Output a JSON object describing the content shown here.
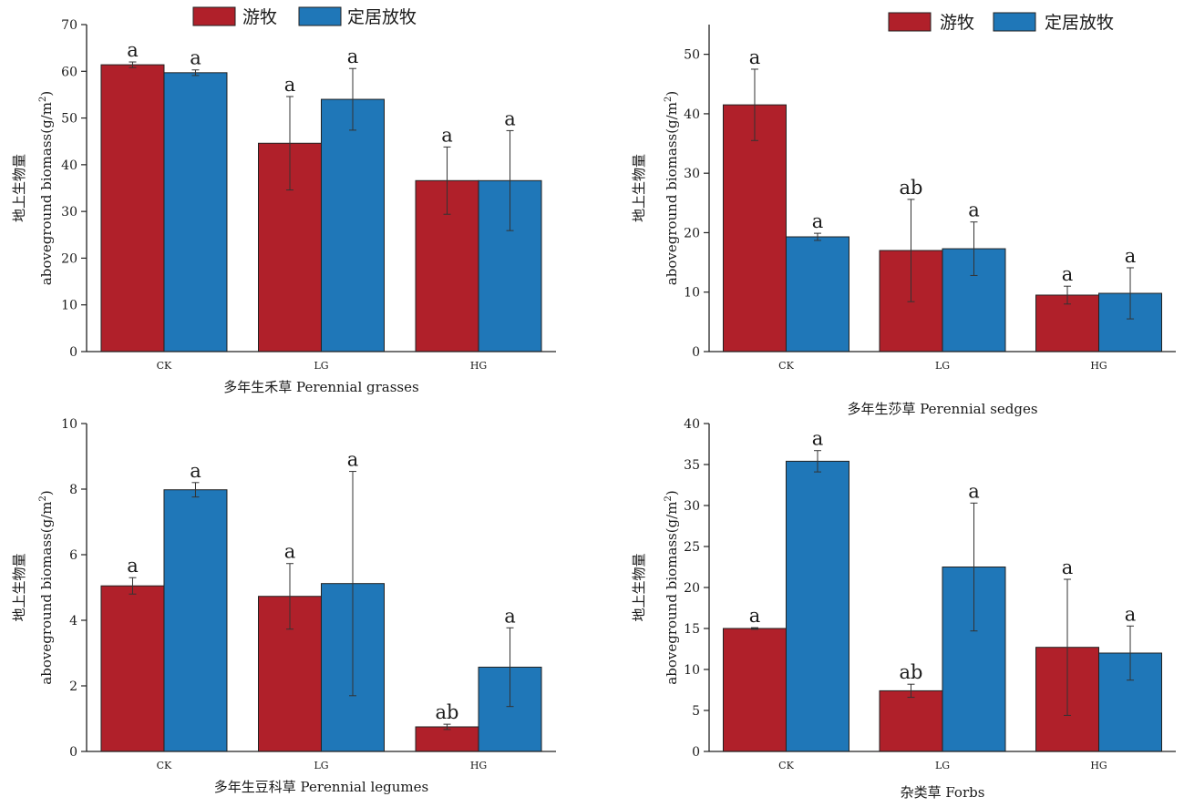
{
  "legend": {
    "series_a": "游牧",
    "series_b": "定居放牧"
  },
  "colors": {
    "series_a": "#b0202a",
    "series_b": "#1f77b8",
    "axis": "#222222",
    "error": "#333333"
  },
  "chart_data": [
    {
      "type": "bar",
      "categories": [
        "CK",
        "LG",
        "HG"
      ],
      "series": [
        {
          "name": "游牧",
          "values": [
            61.4,
            44.6,
            36.6
          ],
          "errors": [
            0.6,
            10.0,
            7.2
          ],
          "letters": [
            "a",
            "a",
            "a"
          ]
        },
        {
          "name": "定居放牧",
          "values": [
            59.7,
            54.0,
            36.6
          ],
          "errors": [
            0.6,
            6.6,
            10.7
          ],
          "letters": [
            "a",
            "a",
            "a"
          ]
        }
      ],
      "ylim": [
        0,
        70
      ],
      "ytick_step": 10,
      "yticks_decimals": 0,
      "ylabel_cn": "地上生物量",
      "ylabel_en": "aboveground biomass",
      "ylabel_unit": "(g/m",
      "ylabel_sup": "2",
      "ylabel_close": ")",
      "xlabel": "多年生禾草 Perennial grasses",
      "legend_position": "top"
    },
    {
      "type": "bar",
      "categories": [
        "CK",
        "LG",
        "HG"
      ],
      "series": [
        {
          "name": "游牧",
          "values": [
            41.5,
            17.0,
            9.5
          ],
          "errors": [
            6.0,
            8.6,
            1.5
          ],
          "letters": [
            "a",
            "ab",
            "a"
          ]
        },
        {
          "name": "定居放牧",
          "values": [
            19.3,
            17.3,
            9.8
          ],
          "errors": [
            0.6,
            4.5,
            4.3
          ],
          "letters": [
            "a",
            "a",
            "a"
          ]
        }
      ],
      "ylim": [
        0,
        55
      ],
      "ytick_step": 10,
      "yticks_decimals": 0,
      "ylabel_cn": "地上生物量",
      "ylabel_en": "aboveground biomass",
      "ylabel_unit": "(g/m",
      "ylabel_sup": "2",
      "ylabel_close": ")",
      "xlabel": "多年生莎草  Perennial sedges",
      "legend_position": "top-right"
    },
    {
      "type": "bar",
      "categories": [
        "CK",
        "LG",
        "HG"
      ],
      "series": [
        {
          "name": "游牧",
          "values": [
            5.05,
            4.73,
            0.75
          ],
          "errors": [
            0.25,
            1.0,
            0.08
          ],
          "letters": [
            "a",
            "a",
            "ab"
          ]
        },
        {
          "name": "定居放牧",
          "values": [
            7.98,
            5.12,
            2.57
          ],
          "errors": [
            0.22,
            3.42,
            1.2
          ],
          "letters": [
            "a",
            "a",
            "a"
          ]
        }
      ],
      "ylim": [
        0,
        10
      ],
      "ytick_step": 2,
      "yticks_decimals": 0,
      "ylabel_cn": "地上生物量",
      "ylabel_en": "aboveground biomass",
      "ylabel_unit": "(g/m",
      "ylabel_sup": "2",
      "ylabel_close": ")",
      "xlabel": "多年生豆科草  Perennial legumes"
    },
    {
      "type": "bar",
      "categories": [
        "CK",
        "LG",
        "HG"
      ],
      "series": [
        {
          "name": "游牧",
          "values": [
            15.0,
            7.4,
            12.7
          ],
          "errors": [
            0.1,
            0.8,
            8.3
          ],
          "letters": [
            "a",
            "ab",
            "a"
          ]
        },
        {
          "name": "定居放牧",
          "values": [
            35.4,
            22.5,
            12.0
          ],
          "errors": [
            1.3,
            7.8,
            3.3
          ],
          "letters": [
            "a",
            "a",
            "a"
          ]
        }
      ],
      "ylim": [
        0,
        40
      ],
      "ytick_step": 5,
      "yticks_decimals": 0,
      "ylabel_cn": "地上生物量",
      "ylabel_en": "aboveground biomass",
      "ylabel_unit": "(g/m",
      "ylabel_sup": "2",
      "ylabel_close": ")",
      "xlabel": "杂类草  Forbs"
    }
  ]
}
